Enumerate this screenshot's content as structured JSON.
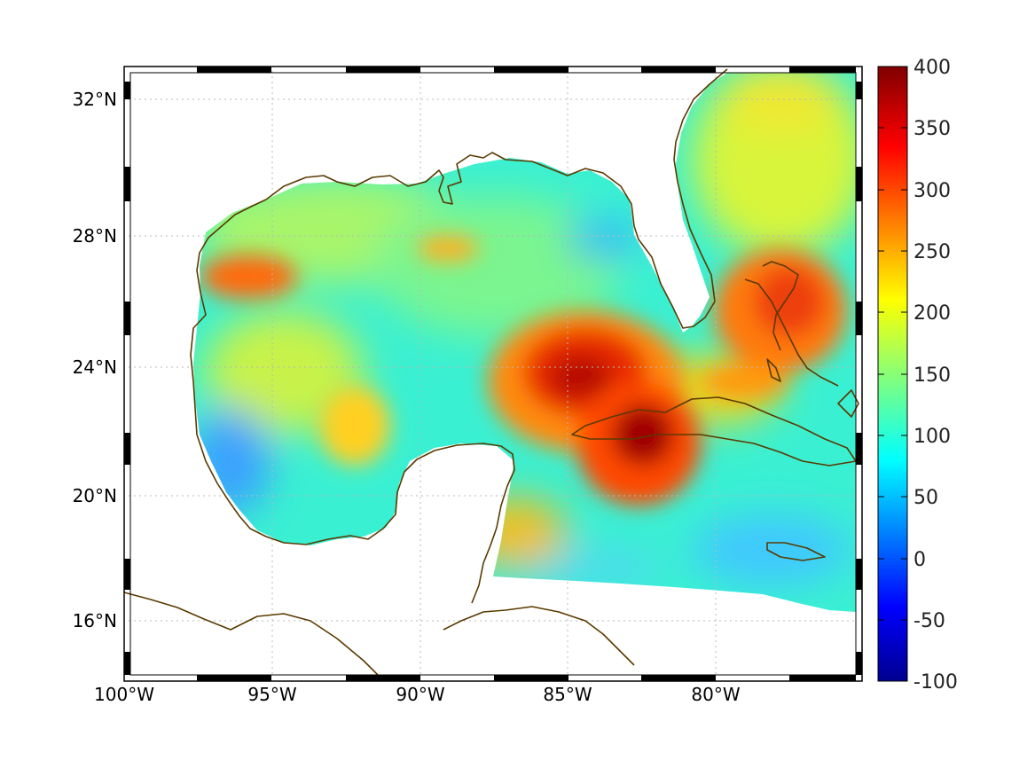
{
  "map": {
    "lon_range": [
      "100°W",
      "75°W"
    ],
    "lat_range": [
      "14.3°N",
      "33°N"
    ],
    "coastline_color": "#5a3a00",
    "grid": "dotted",
    "lon_labels": [
      "100°W",
      "95°W",
      "90°W",
      "85°W",
      "80°W"
    ],
    "lat_labels": [
      "32°N",
      "28°N",
      "24°N",
      "20°N",
      "16°N"
    ]
  },
  "colorbar": {
    "colormap": "jet",
    "min": -100,
    "max": 400,
    "ticks": [
      "400",
      "350",
      "300",
      "250",
      "200",
      "150",
      "100",
      "50",
      "0",
      "-50",
      "-100"
    ]
  }
}
